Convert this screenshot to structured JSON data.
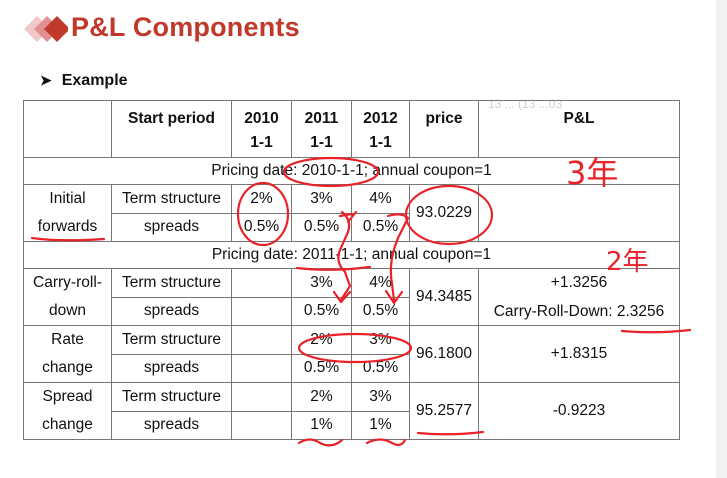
{
  "slide": {
    "title": "P&L Components",
    "example_label": "Example",
    "ghost_text": "13 ... (13 ...03"
  },
  "table": {
    "headers": {
      "start_period": "Start period",
      "y2010": "2010\n1-1",
      "y2011": "2011\n1-1",
      "y2012": "2012\n1-1",
      "price": "price",
      "pl": "P&L"
    },
    "section1_note": "Pricing date: 2010-1-1; annual coupon=1",
    "section2_note": "Pricing date: 2011-1-1; annual coupon=1",
    "initial": {
      "label": "Initial\nforwards",
      "ts_label": "Term structure",
      "sp_label": "spreads",
      "ts": [
        "2%",
        "3%",
        "4%"
      ],
      "sp": [
        "0.5%",
        "0.5%",
        "0.5%"
      ],
      "price": "93.0229"
    },
    "carry": {
      "label": "Carry-roll-\ndown",
      "ts_label": "Term structure",
      "sp_label": "spreads",
      "ts": [
        "",
        "3%",
        "4%"
      ],
      "sp": [
        "",
        "0.5%",
        "0.5%"
      ],
      "price": "94.3485",
      "pl": "+1.3256",
      "pl_note": "Carry-Roll-Down: 2.3256"
    },
    "rate": {
      "label": "Rate\nchange",
      "ts_label": "Term structure",
      "sp_label": "spreads",
      "ts": [
        "",
        "2%",
        "3%"
      ],
      "sp": [
        "",
        "0.5%",
        "0.5%"
      ],
      "price": "96.1800",
      "pl": "+1.8315"
    },
    "spread": {
      "label": "Spread\nchange",
      "ts_label": "Term structure",
      "sp_label": "spreads",
      "ts": [
        "",
        "2%",
        "3%"
      ],
      "sp": [
        "",
        "1%",
        "1%"
      ],
      "price": "95.2577",
      "pl": "-0.9223"
    }
  },
  "annotations": {
    "ink_color": "#e8232a",
    "note_1": "3年",
    "note_2": "2年"
  }
}
